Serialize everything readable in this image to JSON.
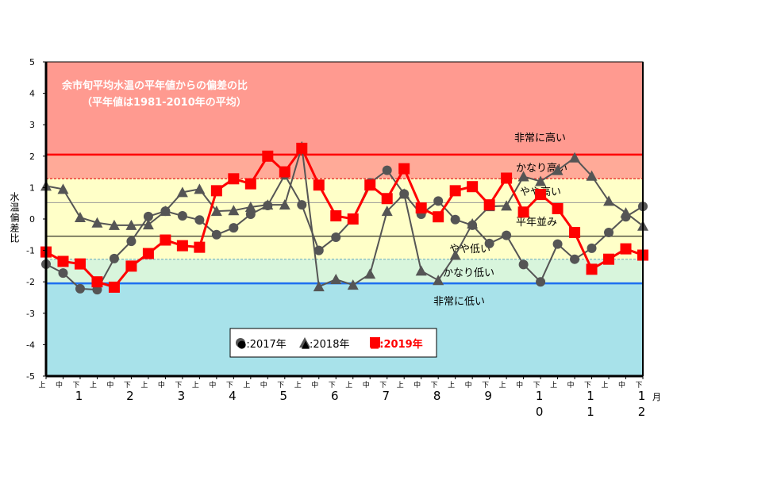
{
  "chart_data": {
    "type": "line",
    "title": "余市旬平均水温の平年値からの偏差の比",
    "subtitle": "（平年値は1981-2010年の平均）",
    "ylabel": "水温偏差比",
    "xlabel": "月",
    "ylim": [
      -5,
      5
    ],
    "yticks": [
      "5",
      "4",
      "3",
      "2",
      "1",
      "0",
      "-1",
      "-2",
      "-3",
      "-4",
      "-5"
    ],
    "period_labels": [
      "上",
      "中",
      "下"
    ],
    "month_labels": [
      [
        "1"
      ],
      [
        "2"
      ],
      [
        "3"
      ],
      [
        "4"
      ],
      [
        "5"
      ],
      [
        "6"
      ],
      [
        "7"
      ],
      [
        "8"
      ],
      [
        "9"
      ],
      [
        "1",
        "0"
      ],
      [
        "1",
        "1"
      ],
      [
        "1",
        "2"
      ]
    ],
    "thresholds": [
      {
        "label": "非常に高い",
        "value": 2.05
      },
      {
        "label": "かなり高い",
        "value": 1.28
      },
      {
        "label": "やや高い",
        "value": 0.52
      },
      {
        "label": "平年並み",
        "value": 0
      },
      {
        "label": "やや低い",
        "value": -0.55
      },
      {
        "label": "かなり低い",
        "value": -1.28
      },
      {
        "label": "非常に低い",
        "value": -2.05
      }
    ],
    "series": [
      {
        "name": "●:2017年",
        "marker": "circle",
        "color": "#555555",
        "values": [
          -1.44,
          -1.72,
          -2.22,
          -2.25,
          -1.26,
          -0.71,
          0.08,
          0.25,
          0.1,
          -0.03,
          -0.5,
          -0.28,
          0.15,
          0.43,
          1.4,
          0.45,
          -1.0,
          -0.58,
          0.0,
          1.15,
          1.55,
          0.8,
          0.15,
          0.57,
          -0.02,
          -0.2,
          -0.78,
          -0.52,
          -1.45,
          -2.0,
          -0.8,
          -1.28,
          -0.93,
          -0.43,
          0.07,
          0.4
        ]
      },
      {
        "name": "▲:2018年",
        "marker": "triangle",
        "color": "#555555",
        "values": [
          1.05,
          0.95,
          0.05,
          -0.12,
          -0.2,
          -0.2,
          -0.18,
          0.25,
          0.85,
          0.95,
          0.25,
          0.27,
          0.38,
          0.45,
          0.45,
          2.3,
          -2.15,
          -1.92,
          -2.1,
          -1.75,
          0.25,
          0.8,
          -1.65,
          -1.95,
          -1.15,
          -0.15,
          0.4,
          0.42,
          1.35,
          1.2,
          1.55,
          1.95,
          1.37,
          0.57,
          0.2,
          -0.22
        ]
      },
      {
        "name": "■:2019年",
        "marker": "square",
        "color": "#ff0000",
        "values": [
          -1.05,
          -1.35,
          -1.43,
          -2.0,
          -2.17,
          -1.5,
          -1.1,
          -0.67,
          -0.85,
          -0.9,
          0.9,
          1.28,
          1.12,
          2.0,
          1.5,
          2.25,
          1.08,
          0.1,
          0.0,
          1.08,
          0.65,
          1.6,
          0.35,
          0.07,
          0.9,
          1.03,
          0.45,
          1.3,
          0.22,
          0.78,
          0.33,
          -0.43,
          -1.6,
          -1.28,
          -0.95,
          -1.15
        ]
      }
    ],
    "legend_position": "bottom-center"
  }
}
